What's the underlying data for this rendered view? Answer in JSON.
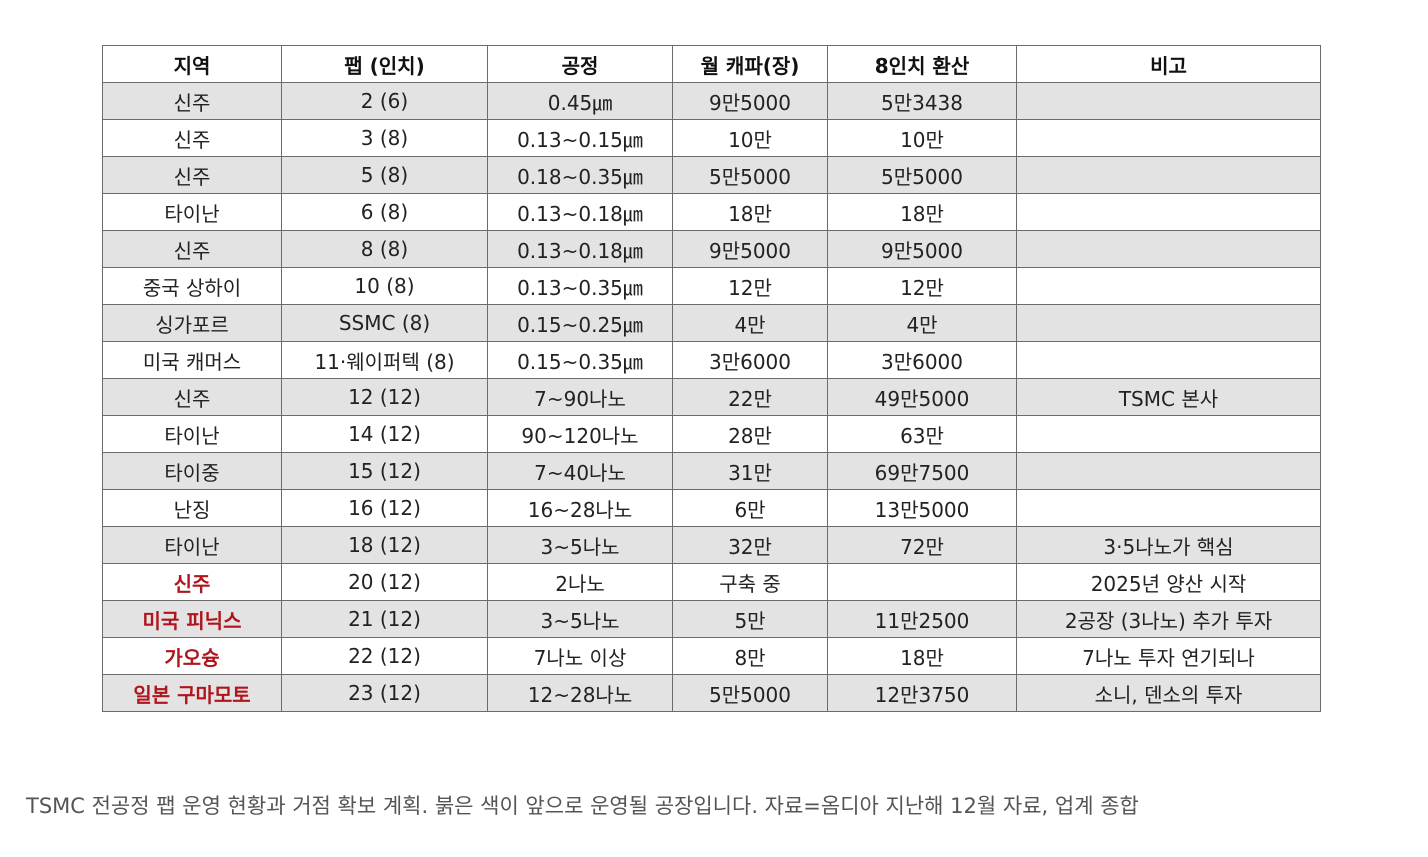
{
  "table": {
    "headers": [
      "지역",
      "팹 (인치)",
      "공정",
      "월 캐파(장)",
      "8인치 환산",
      "비고"
    ],
    "rows": [
      {
        "region": "신주",
        "fab": "2 (6)",
        "process": "0.45㎛",
        "capacity": "9만5000",
        "equiv8": "5만3438",
        "note": "",
        "future": false
      },
      {
        "region": "신주",
        "fab": "3 (8)",
        "process": "0.13~0.15㎛",
        "capacity": "10만",
        "equiv8": "10만",
        "note": "",
        "future": false
      },
      {
        "region": "신주",
        "fab": "5 (8)",
        "process": "0.18~0.35㎛",
        "capacity": "5만5000",
        "equiv8": "5만5000",
        "note": "",
        "future": false
      },
      {
        "region": "타이난",
        "fab": "6 (8)",
        "process": "0.13~0.18㎛",
        "capacity": "18만",
        "equiv8": "18만",
        "note": "",
        "future": false
      },
      {
        "region": "신주",
        "fab": "8 (8)",
        "process": "0.13~0.18㎛",
        "capacity": "9만5000",
        "equiv8": "9만5000",
        "note": "",
        "future": false
      },
      {
        "region": "중국 상하이",
        "fab": "10 (8)",
        "process": "0.13~0.35㎛",
        "capacity": "12만",
        "equiv8": "12만",
        "note": "",
        "future": false
      },
      {
        "region": "싱가포르",
        "fab": "SSMC (8)",
        "process": "0.15~0.25㎛",
        "capacity": "4만",
        "equiv8": "4만",
        "note": "",
        "future": false
      },
      {
        "region": "미국 캐머스",
        "fab": "11·웨이퍼텍 (8)",
        "process": "0.15~0.35㎛",
        "capacity": "3만6000",
        "equiv8": "3만6000",
        "note": "",
        "future": false
      },
      {
        "region": "신주",
        "fab": "12 (12)",
        "process": "7~90나노",
        "capacity": "22만",
        "equiv8": "49만5000",
        "note": "TSMC 본사",
        "future": false
      },
      {
        "region": "타이난",
        "fab": "14 (12)",
        "process": "90~120나노",
        "capacity": "28만",
        "equiv8": "63만",
        "note": "",
        "future": false
      },
      {
        "region": "타이중",
        "fab": "15 (12)",
        "process": "7~40나노",
        "capacity": "31만",
        "equiv8": "69만7500",
        "note": "",
        "future": false
      },
      {
        "region": "난징",
        "fab": "16 (12)",
        "process": "16~28나노",
        "capacity": "6만",
        "equiv8": "13만5000",
        "note": "",
        "future": false
      },
      {
        "region": "타이난",
        "fab": "18 (12)",
        "process": "3~5나노",
        "capacity": "32만",
        "equiv8": "72만",
        "note": "3·5나노가 핵심",
        "future": false
      },
      {
        "region": "신주",
        "fab": "20 (12)",
        "process": "2나노",
        "capacity": "구축 중",
        "equiv8": "",
        "note": "2025년 양산 시작",
        "future": true
      },
      {
        "region": "미국 피닉스",
        "fab": "21 (12)",
        "process": "3~5나노",
        "capacity": "5만",
        "equiv8": "11만2500",
        "note": "2공장 (3나노) 추가 투자",
        "future": true
      },
      {
        "region": "가오슝",
        "fab": "22 (12)",
        "process": "7나노 이상",
        "capacity": "8만",
        "equiv8": "18만",
        "note": "7나노 투자 연기되나",
        "future": true
      },
      {
        "region": "일본 구마모토",
        "fab": "23 (12)",
        "process": "12~28나노",
        "capacity": "5만5000",
        "equiv8": "12만3750",
        "note": "소니, 덴소의 투자",
        "future": true
      }
    ]
  },
  "colors": {
    "future_region_text": "#b0141c",
    "shaded_row": "#e3e3e3",
    "border": "#6b6b6b"
  },
  "caption": "TSMC 전공정 팹 운영 현황과 거점 확보 계획. 붉은 색이 앞으로 운영될 공장입니다. 자료=옴디아 지난해 12월 자료, 업계 종합"
}
